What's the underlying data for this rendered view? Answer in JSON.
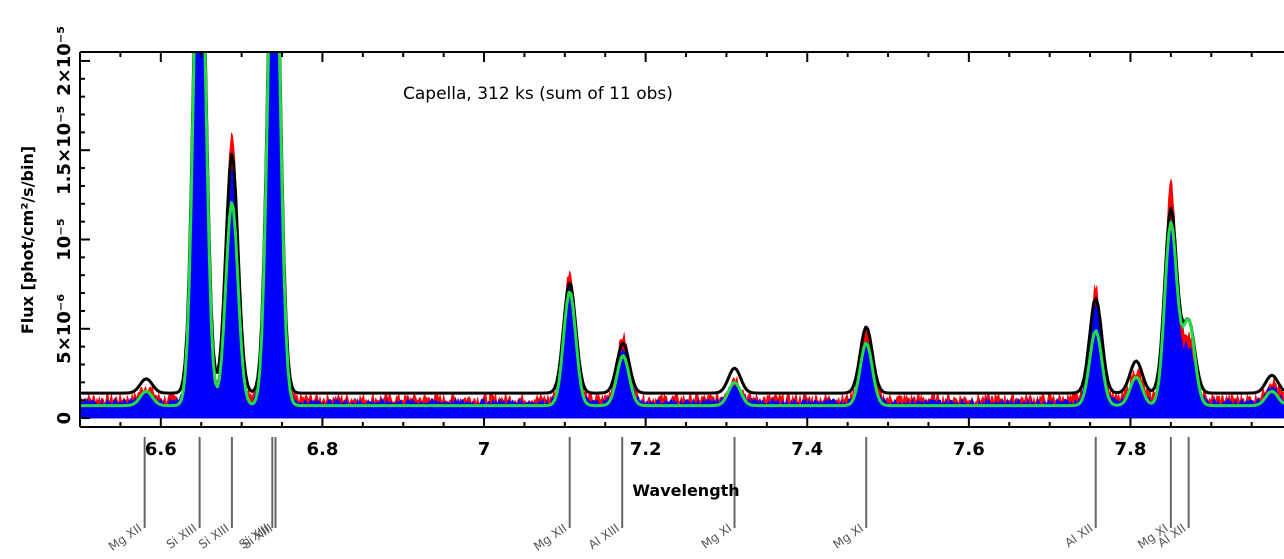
{
  "chart_data": {
    "type": "line",
    "annotation": "Capella, 312 ks (sum of 11 obs)",
    "xlabel": "Wavelength",
    "ylabel": "Flux [phot/cm²/s/bin]",
    "xlim": [
      6.5,
      7.99
    ],
    "ylim": [
      -5e-07,
      2.05e-05
    ],
    "x_ticks": [
      6.6,
      6.8,
      7.0,
      7.2,
      7.4,
      7.6,
      7.8
    ],
    "x_tick_labels": [
      "6.6",
      "6.8",
      "7",
      "7.2",
      "7.4",
      "7.6",
      "7.8"
    ],
    "y_ticks": [
      0,
      5e-06,
      1e-05,
      1.5e-05,
      2e-05
    ],
    "y_tick_labels": [
      "0",
      "5×10⁻⁶",
      "10⁻⁵",
      "1.5×10⁻⁵",
      "2×10⁻⁵"
    ],
    "series": [
      {
        "color": "#ff0000",
        "style": "filled",
        "continuum": 1.1e-06,
        "noise": 3e-07,
        "peaks": [
          [
            6.582,
            7e-07
          ],
          [
            6.648,
            3e-05
          ],
          [
            6.688,
            1.5e-05
          ],
          [
            6.74,
            3e-05
          ],
          [
            7.106,
            7.2e-06
          ],
          [
            7.172,
            3.5e-06
          ],
          [
            7.31,
            1.2e-06
          ],
          [
            7.473,
            4e-06
          ],
          [
            7.757,
            6.2e-06
          ],
          [
            7.807,
            1.6e-06
          ],
          [
            7.85,
            1.2e-05
          ],
          [
            7.872,
            3.5e-06
          ],
          [
            7.975,
            1e-06
          ]
        ]
      },
      {
        "color": "#0000ff",
        "style": "filled",
        "continuum": 9e-07,
        "noise": 2e-07,
        "peaks": [
          [
            6.582,
            5e-07
          ],
          [
            6.648,
            3e-05
          ],
          [
            6.688,
            1.3e-05
          ],
          [
            6.74,
            3e-05
          ],
          [
            7.106,
            6.2e-06
          ],
          [
            7.172,
            2.9e-06
          ],
          [
            7.31,
            1e-06
          ],
          [
            7.473,
            3.4e-06
          ],
          [
            7.757,
            5.4e-06
          ],
          [
            7.807,
            1.3e-06
          ],
          [
            7.85,
            9.5e-06
          ],
          [
            7.872,
            3e-06
          ],
          [
            7.975,
            8e-07
          ]
        ]
      },
      {
        "color": "#000000",
        "style": "line",
        "continuum": 1.4e-06,
        "noise": 0,
        "peaks": [
          [
            6.582,
            8e-07
          ],
          [
            6.648,
            3e-05
          ],
          [
            6.688,
            1.34e-05
          ],
          [
            6.74,
            3e-05
          ],
          [
            7.106,
            6.2e-06
          ],
          [
            7.172,
            2.8e-06
          ],
          [
            7.31,
            1.4e-06
          ],
          [
            7.473,
            3.7e-06
          ],
          [
            7.757,
            5.3e-06
          ],
          [
            7.807,
            1.8e-06
          ],
          [
            7.85,
            1.03e-05
          ],
          [
            7.872,
            4e-06
          ],
          [
            7.975,
            1e-06
          ]
        ]
      },
      {
        "color": "#22dd44",
        "style": "line",
        "continuum": 7e-07,
        "noise": 0,
        "peaks": [
          [
            6.582,
            8e-07
          ],
          [
            6.648,
            3e-05
          ],
          [
            6.688,
            1.14e-05
          ],
          [
            6.74,
            3e-05
          ],
          [
            7.106,
            6.4e-06
          ],
          [
            7.172,
            2.8e-06
          ],
          [
            7.31,
            1.3e-06
          ],
          [
            7.473,
            3.5e-06
          ],
          [
            7.757,
            4.2e-06
          ],
          [
            7.807,
            1.6e-06
          ],
          [
            7.85,
            1.02e-05
          ],
          [
            7.872,
            4.7e-06
          ],
          [
            7.975,
            8e-07
          ]
        ]
      }
    ],
    "line_ids": [
      {
        "wavelength": 6.58,
        "label": "Mg XII"
      },
      {
        "wavelength": 6.648,
        "label": "Si XIII"
      },
      {
        "wavelength": 6.688,
        "label": "Si XIII"
      },
      {
        "wavelength": 6.738,
        "label": "Si XIII"
      },
      {
        "wavelength": 6.742,
        "label": "Si XIII"
      },
      {
        "wavelength": 7.106,
        "label": "Mg XII"
      },
      {
        "wavelength": 7.171,
        "label": "Al XIII"
      },
      {
        "wavelength": 7.31,
        "label": "Mg XI"
      },
      {
        "wavelength": 7.473,
        "label": "Mg XI"
      },
      {
        "wavelength": 7.757,
        "label": "Al XII"
      },
      {
        "wavelength": 7.85,
        "label": "Mg XI"
      },
      {
        "wavelength": 7.872,
        "label": "Al XII"
      }
    ]
  }
}
